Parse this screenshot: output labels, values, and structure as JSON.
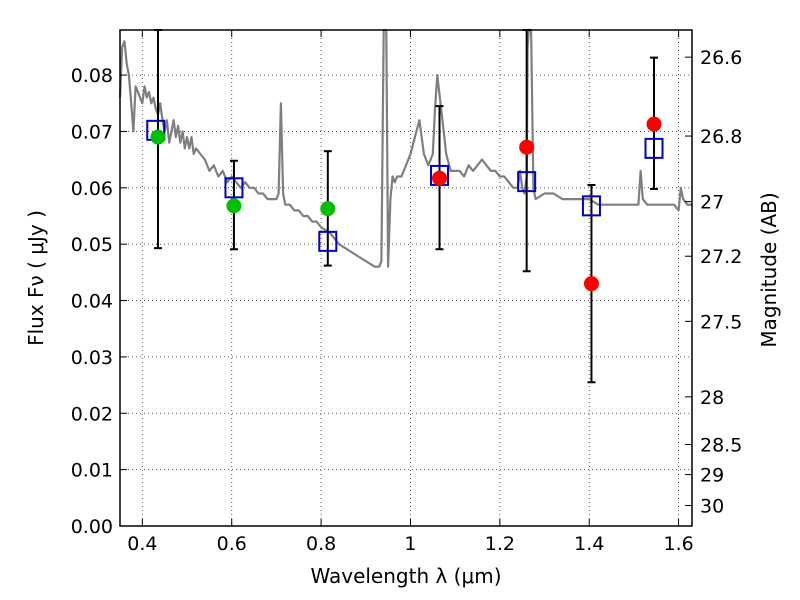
{
  "chart_data": {
    "type": "scatter",
    "xlabel": "Wavelength  λ (μm)",
    "ylabel": "Flux  Fν  ( μJy )",
    "y2label": "Magnitude (AB)",
    "xlim": [
      0.35,
      1.63
    ],
    "ylim": [
      0.0,
      0.088
    ],
    "grid": true,
    "x_ticks": [
      0.4,
      0.6,
      0.8,
      1.0,
      1.2,
      1.4,
      1.6
    ],
    "x_tick_labels": [
      "0.4",
      "0.6",
      "0.8",
      "1",
      "1.2",
      "1.4",
      "1.6"
    ],
    "y_ticks": [
      0.0,
      0.01,
      0.02,
      0.03,
      0.04,
      0.05,
      0.06,
      0.07,
      0.08
    ],
    "y_tick_labels": [
      "0.00",
      "0.01",
      "0.02",
      "0.03",
      "0.04",
      "0.05",
      "0.06",
      "0.07",
      "0.08"
    ],
    "y2_ticks": [
      26.6,
      26.8,
      27.0,
      27.2,
      27.5,
      28.0,
      28.5,
      29.0,
      30.0
    ],
    "y2_tick_labels": [
      "26.6",
      "26.8",
      "27",
      "27.2",
      "27.5",
      "28",
      "28.5",
      "29",
      "30"
    ],
    "series": [
      {
        "kind": "line",
        "color": "#7f7f7f",
        "x": [
          0.35,
          0.355,
          0.36,
          0.365,
          0.37,
          0.375,
          0.38,
          0.385,
          0.39,
          0.395,
          0.4,
          0.405,
          0.41,
          0.415,
          0.42,
          0.425,
          0.43,
          0.435,
          0.44,
          0.445,
          0.45,
          0.455,
          0.46,
          0.465,
          0.47,
          0.475,
          0.48,
          0.485,
          0.49,
          0.495,
          0.5,
          0.505,
          0.51,
          0.515,
          0.52,
          0.53,
          0.54,
          0.55,
          0.56,
          0.57,
          0.58,
          0.59,
          0.6,
          0.61,
          0.62,
          0.63,
          0.64,
          0.65,
          0.66,
          0.67,
          0.68,
          0.69,
          0.7,
          0.705,
          0.71,
          0.715,
          0.72,
          0.73,
          0.74,
          0.75,
          0.76,
          0.77,
          0.78,
          0.79,
          0.8,
          0.82,
          0.84,
          0.86,
          0.88,
          0.9,
          0.92,
          0.93,
          0.935,
          0.94,
          0.943,
          0.946,
          0.95,
          0.955,
          0.96,
          0.965,
          0.97,
          0.98,
          0.99,
          1.0,
          1.01,
          1.02,
          1.03,
          1.04,
          1.045,
          1.05,
          1.055,
          1.06,
          1.07,
          1.08,
          1.09,
          1.1,
          1.11,
          1.12,
          1.13,
          1.14,
          1.15,
          1.16,
          1.17,
          1.18,
          1.19,
          1.2,
          1.21,
          1.22,
          1.23,
          1.24,
          1.245,
          1.25,
          1.255,
          1.26,
          1.262,
          1.265,
          1.27,
          1.275,
          1.28,
          1.3,
          1.32,
          1.34,
          1.36,
          1.38,
          1.4,
          1.42,
          1.44,
          1.46,
          1.48,
          1.5,
          1.51,
          1.515,
          1.52,
          1.53,
          1.55,
          1.57,
          1.59,
          1.6,
          1.605,
          1.61,
          1.62,
          1.63
        ],
        "y": [
          0.076,
          0.085,
          0.086,
          0.082,
          0.08,
          0.075,
          0.07,
          0.078,
          0.077,
          0.076,
          0.075,
          0.078,
          0.076,
          0.077,
          0.075,
          0.076,
          0.074,
          0.073,
          0.075,
          0.072,
          0.07,
          0.072,
          0.068,
          0.07,
          0.072,
          0.069,
          0.071,
          0.068,
          0.07,
          0.067,
          0.069,
          0.067,
          0.069,
          0.066,
          0.067,
          0.066,
          0.065,
          0.063,
          0.064,
          0.062,
          0.063,
          0.061,
          0.062,
          0.061,
          0.06,
          0.061,
          0.06,
          0.06,
          0.059,
          0.059,
          0.058,
          0.058,
          0.058,
          0.059,
          0.075,
          0.059,
          0.057,
          0.057,
          0.056,
          0.056,
          0.055,
          0.055,
          0.054,
          0.054,
          0.053,
          0.052,
          0.05,
          0.049,
          0.048,
          0.047,
          0.046,
          0.046,
          0.047,
          0.088,
          0.09,
          0.088,
          0.046,
          0.058,
          0.062,
          0.061,
          0.062,
          0.062,
          0.064,
          0.066,
          0.069,
          0.072,
          0.066,
          0.064,
          0.065,
          0.066,
          0.074,
          0.08,
          0.073,
          0.066,
          0.063,
          0.063,
          0.063,
          0.062,
          0.064,
          0.063,
          0.064,
          0.065,
          0.064,
          0.063,
          0.063,
          0.062,
          0.062,
          0.061,
          0.06,
          0.06,
          0.063,
          0.06,
          0.059,
          0.062,
          0.085,
          0.09,
          0.088,
          0.06,
          0.058,
          0.059,
          0.059,
          0.058,
          0.058,
          0.058,
          0.058,
          0.057,
          0.057,
          0.057,
          0.057,
          0.057,
          0.057,
          0.063,
          0.058,
          0.057,
          0.057,
          0.057,
          0.057,
          0.056,
          0.06,
          0.058,
          0.057,
          0.057
        ]
      },
      {
        "kind": "points",
        "marker": "square",
        "color": "#0000cc",
        "x": [
          0.43,
          0.605,
          0.815,
          1.065,
          1.26,
          1.405,
          1.545
        ],
        "y": [
          0.0702,
          0.06,
          0.0505,
          0.0622,
          0.0611,
          0.0568,
          0.067
        ]
      },
      {
        "kind": "points",
        "marker": "circle",
        "color": "#00bf00",
        "x": [
          0.435,
          0.605,
          0.815
        ],
        "y": [
          0.069,
          0.0568,
          0.0563
        ]
      },
      {
        "kind": "points",
        "marker": "circle",
        "color": "#ff0000",
        "x": [
          1.065,
          1.26,
          1.405,
          1.545
        ],
        "y": [
          0.0617,
          0.0672,
          0.043,
          0.0713
        ]
      }
    ],
    "errorbars": [
      {
        "x": 0.435,
        "low": 0.0493,
        "high": 0.088
      },
      {
        "x": 0.605,
        "low": 0.0491,
        "high": 0.0648
      },
      {
        "x": 0.815,
        "low": 0.0462,
        "high": 0.0665
      },
      {
        "x": 1.065,
        "low": 0.0491,
        "high": 0.0745
      },
      {
        "x": 1.26,
        "low": 0.0452,
        "high": 0.088
      },
      {
        "x": 1.405,
        "low": 0.0255,
        "high": 0.0605
      },
      {
        "x": 1.545,
        "low": 0.0598,
        "high": 0.0831
      }
    ]
  }
}
